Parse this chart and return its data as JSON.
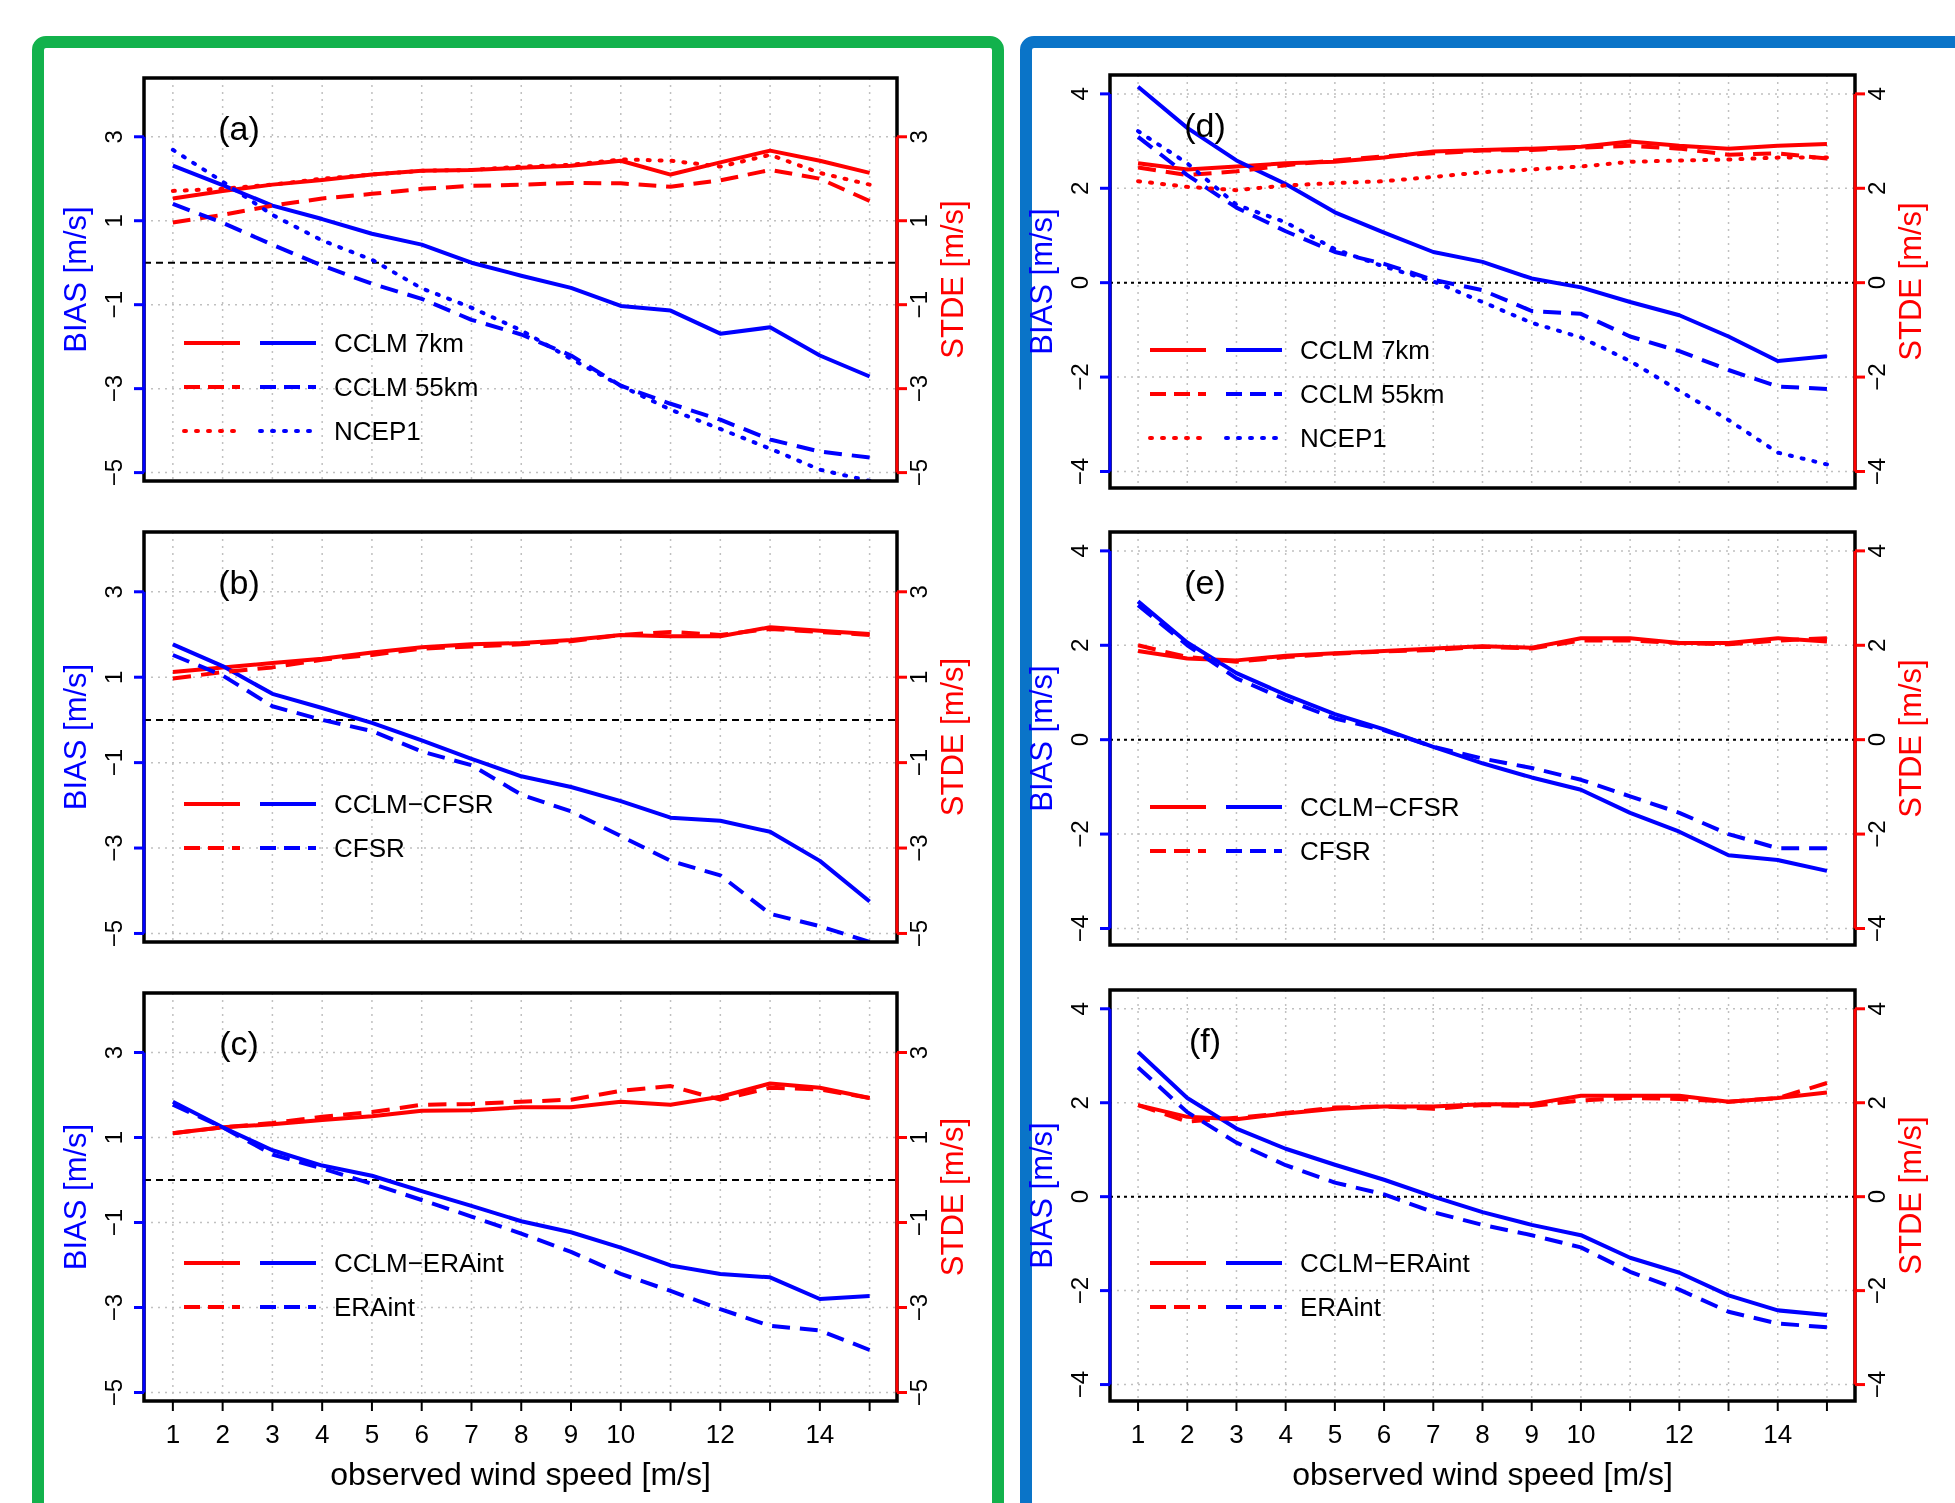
{
  "chart_data": [
    {
      "type": "line",
      "title": "(a)",
      "ylabel": "BIAS [m/s]",
      "y2label": "STDE [m/s]",
      "x": [
        1,
        2,
        3,
        4,
        5,
        6,
        7,
        8,
        9,
        10,
        11,
        12,
        13,
        14,
        15
      ],
      "xlim": [
        0.42,
        15.55
      ],
      "xticks": [
        1,
        2,
        3,
        4,
        5,
        6,
        7,
        8,
        9,
        10,
        {
          "value": 11,
          "label": null
        },
        12,
        {
          "value": 13,
          "label": null
        },
        14,
        {
          "value": 15,
          "label": null
        }
      ],
      "ylim": [
        -5.2,
        4.4
      ],
      "yticks": [
        -5,
        -3,
        -1,
        1,
        3
      ],
      "y2lim": [
        -5.2,
        4.4
      ],
      "y2ticks": [
        -5,
        -3,
        -1,
        1,
        3
      ],
      "grid": true,
      "legend": "bottom left",
      "tick_labels": "y",
      "ref_lines": [
        {
          "axis": "y",
          "value": 0,
          "color": "#000000",
          "line_style": "dashed"
        }
      ],
      "series": [
        {
          "color": "#ff0000",
          "axis": "y2",
          "line_style": "solid",
          "values": [
            1.53,
            1.71,
            1.86,
            1.97,
            2.1,
            2.19,
            2.21,
            2.26,
            2.31,
            2.43,
            2.1,
            2.39,
            2.67,
            2.43,
            2.14
          ]
        },
        {
          "name": "CCLM 7km",
          "color": "#0000ff",
          "line_style": "solid",
          "values": [
            2.31,
            1.85,
            1.36,
            1.04,
            0.69,
            0.43,
            0,
            -0.31,
            -0.6,
            -1.03,
            -1.14,
            -1.69,
            -1.54,
            -2.21,
            -2.71
          ]
        },
        {
          "color": "#ff0000",
          "axis": "y2",
          "line_style": "dashed",
          "values": [
            0.96,
            1.14,
            1.36,
            1.53,
            1.64,
            1.76,
            1.83,
            1.86,
            1.9,
            1.89,
            1.81,
            1.96,
            2.21,
            2.0,
            1.47
          ]
        },
        {
          "name": "CCLM 55km",
          "color": "#0000ff",
          "line_style": "dashed",
          "values": [
            1.4,
            0.95,
            0.43,
            -0.07,
            -0.5,
            -0.86,
            -1.36,
            -1.71,
            -2.21,
            -2.93,
            -3.36,
            -3.74,
            -4.21,
            -4.5,
            -4.64
          ]
        },
        {
          "color": "#ff0000",
          "axis": "y2",
          "line_style": "dotted",
          "values": [
            1.71,
            1.76,
            1.86,
            2.0,
            2.1,
            2.19,
            2.21,
            2.29,
            2.33,
            2.46,
            2.43,
            2.29,
            2.57,
            2.14,
            1.86
          ]
        },
        {
          "name": "NCEP1",
          "color": "#0000ff",
          "line_style": "dotted",
          "values": [
            2.69,
            1.93,
            1.14,
            0.53,
            0.07,
            -0.61,
            -1.07,
            -1.61,
            -2.29,
            -2.93,
            -3.5,
            -3.96,
            -4.43,
            -4.93,
            -5.2
          ]
        }
      ]
    },
    {
      "type": "line",
      "title": "(b)",
      "ylabel": "BIAS [m/s]",
      "y2label": "STDE [m/s]",
      "x": [
        1,
        2,
        3,
        4,
        5,
        6,
        7,
        8,
        9,
        10,
        11,
        12,
        13,
        14,
        15
      ],
      "xlim": [
        0.42,
        15.55
      ],
      "xticks": [
        1,
        2,
        3,
        4,
        5,
        6,
        7,
        8,
        9,
        10,
        {
          "value": 11,
          "label": null
        },
        12,
        {
          "value": 13,
          "label": null
        },
        14,
        {
          "value": 15,
          "label": null
        }
      ],
      "ylim": [
        -5.2,
        4.4
      ],
      "yticks": [
        -5,
        -3,
        -1,
        1,
        3
      ],
      "y2lim": [
        -5.2,
        4.4
      ],
      "y2ticks": [
        -5,
        -3,
        -1,
        1,
        3
      ],
      "grid": true,
      "legend": "bottom left",
      "tick_labels": "y",
      "ref_lines": [
        {
          "axis": "y",
          "value": 0,
          "color": "#000000",
          "line_style": "dashed"
        }
      ],
      "series": [
        {
          "color": "#ff0000",
          "axis": "y2",
          "line_style": "solid",
          "values": [
            1.12,
            1.23,
            1.33,
            1.43,
            1.58,
            1.7,
            1.77,
            1.8,
            1.87,
            1.99,
            1.96,
            1.96,
            2.17,
            2.09,
            2.01
          ]
        },
        {
          "name": "CCLM−CFSR",
          "color": "#0000ff",
          "line_style": "solid",
          "values": [
            1.77,
            1.26,
            0.61,
            0.28,
            -0.07,
            -0.48,
            -0.91,
            -1.32,
            -1.57,
            -1.9,
            -2.29,
            -2.36,
            -2.62,
            -3.3,
            -4.25
          ]
        },
        {
          "color": "#ff0000",
          "axis": "y2",
          "line_style": "dashed",
          "values": [
            0.97,
            1.12,
            1.23,
            1.41,
            1.52,
            1.67,
            1.72,
            1.77,
            1.84,
            1.99,
            2.06,
            1.99,
            2.13,
            2.06,
            1.99
          ]
        },
        {
          "name": "CFSR",
          "color": "#0000ff",
          "line_style": "dashed",
          "values": [
            1.52,
            1.04,
            0.32,
            0,
            -0.26,
            -0.74,
            -1.06,
            -1.75,
            -2.14,
            -2.72,
            -3.3,
            -3.64,
            -4.54,
            -4.83,
            -5.2
          ]
        }
      ]
    },
    {
      "type": "line",
      "title": "(c)",
      "xlabel": "observed wind speed [m/s]",
      "ylabel": "BIAS [m/s]",
      "y2label": "STDE [m/s]",
      "x": [
        1,
        2,
        3,
        4,
        5,
        6,
        7,
        8,
        9,
        10,
        11,
        12,
        13,
        14,
        15
      ],
      "xlim": [
        0.42,
        15.55
      ],
      "xticks": [
        1,
        2,
        3,
        4,
        5,
        6,
        7,
        8,
        9,
        10,
        {
          "value": 11,
          "label": null
        },
        12,
        {
          "value": 13,
          "label": null
        },
        14,
        {
          "value": 15,
          "label": null
        }
      ],
      "ylim": [
        -5.2,
        4.4
      ],
      "yticks": [
        -5,
        -3,
        -1,
        1,
        3
      ],
      "y2lim": [
        -5.2,
        4.4
      ],
      "y2ticks": [
        -5,
        -3,
        -1,
        1,
        3
      ],
      "grid": true,
      "legend": "bottom left",
      "ref_lines": [
        {
          "axis": "y",
          "value": 0,
          "color": "#000000",
          "line_style": "dashed"
        }
      ],
      "series": [
        {
          "color": "#ff0000",
          "axis": "y2",
          "line_style": "solid",
          "values": [
            1.1,
            1.24,
            1.31,
            1.41,
            1.5,
            1.63,
            1.64,
            1.71,
            1.71,
            1.84,
            1.77,
            1.96,
            2.27,
            2.17,
            1.93
          ]
        },
        {
          "name": "CCLM−ERAint",
          "color": "#0000ff",
          "line_style": "solid",
          "values": [
            1.84,
            1.24,
            0.7,
            0.34,
            0.1,
            -0.26,
            -0.61,
            -0.97,
            -1.23,
            -1.59,
            -2.01,
            -2.21,
            -2.29,
            -2.8,
            -2.73
          ]
        },
        {
          "color": "#ff0000",
          "axis": "y2",
          "line_style": "dashed",
          "values": [
            1.1,
            1.24,
            1.34,
            1.49,
            1.6,
            1.77,
            1.79,
            1.84,
            1.89,
            2.1,
            2.21,
            1.89,
            2.17,
            2.13,
            1.93
          ]
        },
        {
          "name": "ERAint",
          "color": "#0000ff",
          "line_style": "dashed",
          "values": [
            1.77,
            1.24,
            0.6,
            0.27,
            -0.09,
            -0.47,
            -0.86,
            -1.26,
            -1.69,
            -2.21,
            -2.61,
            -3.04,
            -3.43,
            -3.54,
            -4.0
          ]
        }
      ]
    },
    {
      "type": "line",
      "title": "(d)",
      "ylabel": "BIAS [m/s]",
      "y2label": "STDE [m/s]",
      "x": [
        1,
        2,
        3,
        4,
        5,
        6,
        7,
        8,
        9,
        10,
        11,
        12,
        13,
        14,
        15
      ],
      "xlim": [
        0.43,
        15.57
      ],
      "xticks": [
        1,
        2,
        3,
        4,
        5,
        6,
        7,
        8,
        9,
        10,
        {
          "value": 11,
          "label": null
        },
        12,
        {
          "value": 13,
          "label": null
        },
        14,
        {
          "value": 15,
          "label": null
        }
      ],
      "ylim": [
        -4.35,
        4.4
      ],
      "yticks": [
        -4,
        -2,
        0,
        2,
        4
      ],
      "y2lim": [
        -4.35,
        4.4
      ],
      "y2ticks": [
        -4,
        -2,
        0,
        2,
        4
      ],
      "grid": true,
      "legend": "bottom left",
      "tick_labels": "y",
      "ref_lines": [
        {
          "axis": "y",
          "value": 0,
          "color": "#000000",
          "line_style": "dotted"
        }
      ],
      "series": [
        {
          "color": "#ff0000",
          "axis": "y2",
          "line_style": "solid",
          "values": [
            2.53,
            2.4,
            2.46,
            2.53,
            2.56,
            2.65,
            2.78,
            2.81,
            2.84,
            2.88,
            2.99,
            2.9,
            2.84,
            2.9,
            2.94
          ]
        },
        {
          "name": "CCLM 7km",
          "color": "#0000ff",
          "line_style": "solid",
          "values": [
            4.15,
            3.28,
            2.59,
            2.09,
            1.49,
            1.06,
            0.65,
            0.44,
            0.09,
            -0.1,
            -0.41,
            -0.69,
            -1.14,
            -1.66,
            -1.56
          ]
        },
        {
          "color": "#ff0000",
          "axis": "y2",
          "line_style": "dashed",
          "values": [
            2.44,
            2.28,
            2.36,
            2.49,
            2.59,
            2.68,
            2.74,
            2.8,
            2.81,
            2.86,
            2.9,
            2.84,
            2.71,
            2.74,
            2.63
          ]
        },
        {
          "name": "CCLM 55km",
          "color": "#0000ff",
          "line_style": "dashed",
          "values": [
            3.09,
            2.28,
            1.59,
            1.09,
            0.65,
            0.4,
            0.06,
            -0.16,
            -0.6,
            -0.66,
            -1.14,
            -1.45,
            -1.85,
            -2.2,
            -2.25
          ]
        },
        {
          "color": "#ff0000",
          "axis": "y2",
          "line_style": "dotted",
          "values": [
            2.15,
            2.03,
            1.96,
            2.06,
            2.11,
            2.15,
            2.24,
            2.34,
            2.4,
            2.46,
            2.56,
            2.59,
            2.61,
            2.65,
            2.65
          ]
        },
        {
          "name": "NCEP1",
          "color": "#0000ff",
          "line_style": "dotted",
          "values": [
            3.21,
            2.53,
            1.65,
            1.28,
            0.71,
            0.34,
            0.03,
            -0.41,
            -0.85,
            -1.16,
            -1.66,
            -2.29,
            -2.91,
            -3.6,
            -3.85
          ]
        }
      ]
    },
    {
      "type": "line",
      "title": "(e)",
      "ylabel": "BIAS [m/s]",
      "y2label": "STDE [m/s]",
      "x": [
        1,
        2,
        3,
        4,
        5,
        6,
        7,
        8,
        9,
        10,
        11,
        12,
        13,
        14,
        15
      ],
      "xlim": [
        0.43,
        15.57
      ],
      "xticks": [
        1,
        2,
        3,
        4,
        5,
        6,
        7,
        8,
        9,
        10,
        {
          "value": 11,
          "label": null
        },
        12,
        {
          "value": 13,
          "label": null
        },
        14,
        {
          "value": 15,
          "label": null
        }
      ],
      "ylim": [
        -4.35,
        4.4
      ],
      "yticks": [
        -4,
        -2,
        0,
        2,
        4
      ],
      "y2lim": [
        -4.35,
        4.4
      ],
      "y2ticks": [
        -4,
        -2,
        0,
        2,
        4
      ],
      "grid": true,
      "legend": "bottom left",
      "tick_labels": "y",
      "ref_lines": [
        {
          "axis": "y",
          "value": 0,
          "color": "#000000",
          "line_style": "dotted"
        }
      ],
      "series": [
        {
          "color": "#ff0000",
          "axis": "y2",
          "line_style": "solid",
          "values": [
            1.88,
            1.72,
            1.68,
            1.78,
            1.83,
            1.88,
            1.93,
            1.98,
            1.95,
            2.15,
            2.15,
            2.05,
            2.05,
            2.15,
            2.08
          ]
        },
        {
          "name": "CCLM−CFSR",
          "color": "#0000ff",
          "line_style": "solid",
          "values": [
            2.93,
            2.06,
            1.41,
            0.95,
            0.54,
            0.22,
            -0.15,
            -0.5,
            -0.8,
            -1.06,
            -1.55,
            -1.95,
            -2.45,
            -2.55,
            -2.78
          ]
        },
        {
          "color": "#ff0000",
          "axis": "y2",
          "line_style": "dashed",
          "values": [
            2.0,
            1.75,
            1.65,
            1.75,
            1.82,
            1.87,
            1.9,
            1.97,
            1.93,
            2.1,
            2.1,
            2.05,
            2.02,
            2.1,
            2.15
          ]
        },
        {
          "name": "CFSR",
          "color": "#0000ff",
          "line_style": "dashed",
          "values": [
            2.85,
            2.0,
            1.3,
            0.85,
            0.45,
            0.2,
            -0.15,
            -0.4,
            -0.6,
            -0.85,
            -1.2,
            -1.55,
            -2.0,
            -2.3,
            -2.3
          ]
        }
      ]
    },
    {
      "type": "line",
      "title": "(f)",
      "xlabel": "observed wind speed [m/s]",
      "ylabel": "BIAS [m/s]",
      "y2label": "STDE [m/s]",
      "x": [
        1,
        2,
        3,
        4,
        5,
        6,
        7,
        8,
        9,
        10,
        11,
        12,
        13,
        14,
        15
      ],
      "xlim": [
        0.43,
        15.57
      ],
      "xticks": [
        1,
        2,
        3,
        4,
        5,
        6,
        7,
        8,
        9,
        10,
        {
          "value": 11,
          "label": null
        },
        12,
        {
          "value": 13,
          "label": null
        },
        14,
        {
          "value": 15,
          "label": null
        }
      ],
      "ylim": [
        -4.35,
        4.4
      ],
      "yticks": [
        -4,
        -2,
        0,
        2,
        4
      ],
      "y2lim": [
        -4.35,
        4.4
      ],
      "y2ticks": [
        -4,
        -2,
        0,
        2,
        4
      ],
      "grid": true,
      "legend": "bottom left",
      "ref_lines": [
        {
          "axis": "y",
          "value": 0,
          "color": "#000000",
          "line_style": "dotted"
        }
      ],
      "series": [
        {
          "color": "#ff0000",
          "axis": "y2",
          "line_style": "solid",
          "values": [
            1.95,
            1.7,
            1.65,
            1.77,
            1.87,
            1.92,
            1.92,
            1.97,
            1.97,
            2.15,
            2.15,
            2.15,
            2.02,
            2.1,
            2.22
          ]
        },
        {
          "name": "CCLM−ERAint",
          "color": "#0000ff",
          "line_style": "solid",
          "values": [
            3.08,
            2.1,
            1.45,
            1.02,
            0.68,
            0.36,
            0,
            -0.33,
            -0.6,
            -0.82,
            -1.3,
            -1.62,
            -2.1,
            -2.42,
            -2.52
          ]
        },
        {
          "color": "#ff0000",
          "axis": "y2",
          "line_style": "dashed",
          "values": [
            1.95,
            1.6,
            1.68,
            1.78,
            1.9,
            1.92,
            1.87,
            1.95,
            1.93,
            2.05,
            2.1,
            2.08,
            2.02,
            2.1,
            2.42
          ]
        },
        {
          "name": "ERAint",
          "color": "#0000ff",
          "line_style": "dashed",
          "values": [
            2.75,
            1.8,
            1.15,
            0.67,
            0.3,
            0.05,
            -0.33,
            -0.6,
            -0.82,
            -1.08,
            -1.6,
            -1.98,
            -2.45,
            -2.7,
            -2.78
          ]
        }
      ]
    }
  ]
}
